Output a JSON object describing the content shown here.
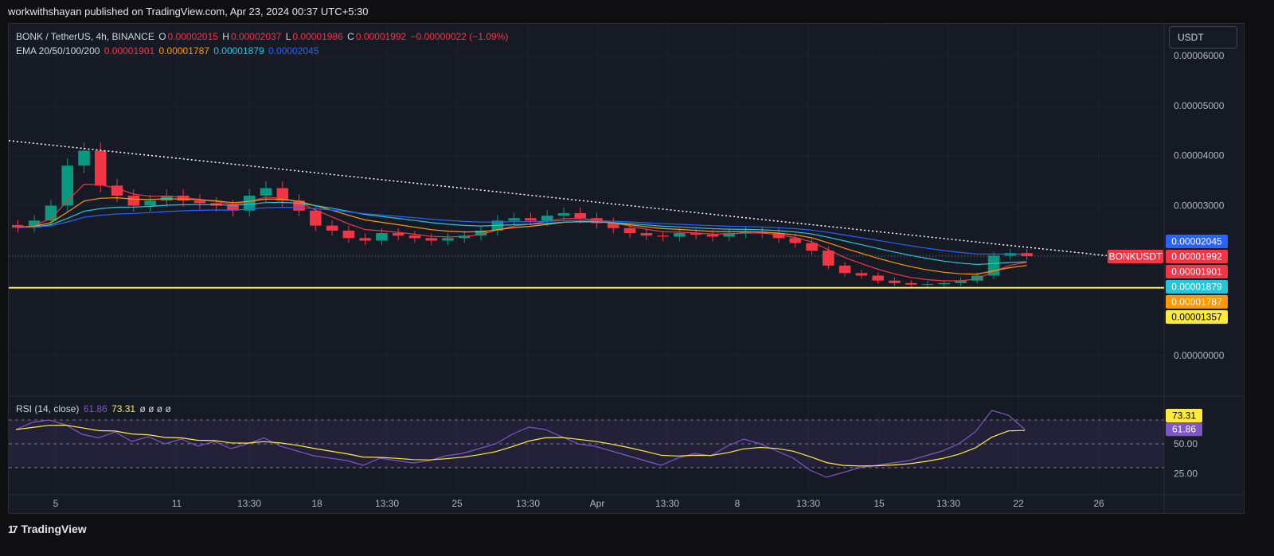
{
  "header": {
    "publisher_line": "workwithshayan published on TradingView.com, Apr 23, 2024 00:37 UTC+5:30"
  },
  "legend": {
    "symbol": "BONK / TetherUS, 4h, BINANCE",
    "o_label": "O",
    "o": "0.00002015",
    "h_label": "H",
    "h": "0.00002037",
    "l_label": "L",
    "l": "0.00001986",
    "c_label": "C",
    "c": "0.00001992",
    "change": "−0.00000022 (−1.09%)",
    "ema_label": "EMA 20/50/100/200",
    "ema20": "0.00001901",
    "ema50": "0.00001787",
    "ema100": "0.00001879",
    "ema200": "0.00002045",
    "rsi_label": "RSI (14, close)",
    "rsi": "61.86",
    "rsi_ma": "73.31",
    "rsi_na": "ø ø ø ø"
  },
  "currency_button": "USDT",
  "footer": {
    "brand": "TradingView",
    "logo_glyph": "17"
  },
  "colors": {
    "up": "#089981",
    "down": "#f23645",
    "ema20": "#f23645",
    "ema50": "#ff9800",
    "ema100": "#26c6da",
    "ema200": "#2962ff",
    "support": "#ffeb3b",
    "trend": "#ffffff",
    "rsi_line": "#7e57c2",
    "rsi_ma": "#ffeb3b"
  },
  "chart_data": {
    "type": "candlestick",
    "symbol": "BONKUSDT",
    "timeframe": "4h",
    "exchange": "BINANCE",
    "y_ticks": [
      "0.00006000",
      "0.00005000",
      "0.00004000",
      "0.00003000",
      "0.00000000"
    ],
    "ylim": [
      0,
      6e-05
    ],
    "x_ticks": [
      "5",
      "11",
      "13:30",
      "18",
      "13:30",
      "25",
      "13:30",
      "Apr",
      "13:30",
      "8",
      "13:30",
      "15",
      "13:30",
      "22",
      "26"
    ],
    "close_series": [
      2.56e-05,
      2.7e-05,
      3e-05,
      3.8e-05,
      4.1e-05,
      3.4e-05,
      3.2e-05,
      3e-05,
      3.1e-05,
      3.2e-05,
      3.1e-05,
      3.05e-05,
      3e-05,
      2.9e-05,
      3.2e-05,
      3.35e-05,
      3.1e-05,
      2.9e-05,
      2.6e-05,
      2.5e-05,
      2.35e-05,
      2.3e-05,
      2.45e-05,
      2.4e-05,
      2.35e-05,
      2.3e-05,
      2.35e-05,
      2.4e-05,
      2.5e-05,
      2.7e-05,
      2.75e-05,
      2.7e-05,
      2.8e-05,
      2.85e-05,
      2.75e-05,
      2.65e-05,
      2.55e-05,
      2.45e-05,
      2.4e-05,
      2.38e-05,
      2.45e-05,
      2.42e-05,
      2.38e-05,
      2.45e-05,
      2.48e-05,
      2.45e-05,
      2.35e-05,
      2.25e-05,
      2.1e-05,
      1.8e-05,
      1.65e-05,
      1.6e-05,
      1.5e-05,
      1.45e-05,
      1.42e-05,
      1.43e-05,
      1.45e-05,
      1.5e-05,
      1.6e-05,
      2e-05,
      2.05e-05,
      1.99e-05
    ],
    "ema_lines": [
      {
        "name": "EMA 20",
        "last": 1.901e-05
      },
      {
        "name": "EMA 50",
        "last": 1.787e-05
      },
      {
        "name": "EMA 100",
        "last": 1.879e-05
      },
      {
        "name": "EMA 200",
        "last": 2.045e-05
      }
    ],
    "support_level": 1.357e-05,
    "trendline": {
      "start": 4.3e-05,
      "end": 2e-05
    },
    "price_labels": [
      {
        "text": "0.00002045",
        "value": 2.045e-05,
        "color": "#2962ff",
        "text_color": "#ffffff"
      },
      {
        "text": "0.00001992",
        "value": 1.992e-05,
        "color": "#f23645",
        "text_color": "#ffffff",
        "tag": "BONKUSDT"
      },
      {
        "text": "0.00001901",
        "value": 1.901e-05,
        "color": "#f23645",
        "text_color": "#ffffff"
      },
      {
        "text": "0.00001879",
        "value": 1.879e-05,
        "color": "#26c6da",
        "text_color": "#ffffff"
      },
      {
        "text": "0.00001787",
        "value": 1.787e-05,
        "color": "#ff9800",
        "text_color": "#ffffff"
      },
      {
        "text": "0.00001357",
        "value": 1.357e-05,
        "color": "#ffeb3b",
        "text_color": "#000000"
      }
    ],
    "rsi": {
      "period": 14,
      "ylim": [
        0,
        100
      ],
      "levels": [
        70,
        50,
        30
      ],
      "axis_ticks": [
        "50.00",
        "25.00"
      ],
      "labels": [
        {
          "text": "73.31",
          "value": 73.31,
          "color": "#ffeb3b",
          "text_color": "#000000"
        },
        {
          "text": "61.86",
          "value": 61.86,
          "color": "#7e57c2",
          "text_color": "#ffffff"
        }
      ],
      "values": [
        62,
        68,
        70,
        66,
        58,
        55,
        60,
        52,
        56,
        50,
        54,
        48,
        52,
        46,
        50,
        55,
        48,
        44,
        40,
        38,
        36,
        32,
        38,
        36,
        34,
        36,
        40,
        42,
        46,
        50,
        58,
        64,
        62,
        56,
        50,
        48,
        44,
        40,
        36,
        32,
        38,
        42,
        40,
        48,
        54,
        50,
        44,
        38,
        28,
        22,
        26,
        30,
        32,
        34,
        36,
        40,
        44,
        50,
        60,
        78,
        74,
        62
      ]
    }
  }
}
